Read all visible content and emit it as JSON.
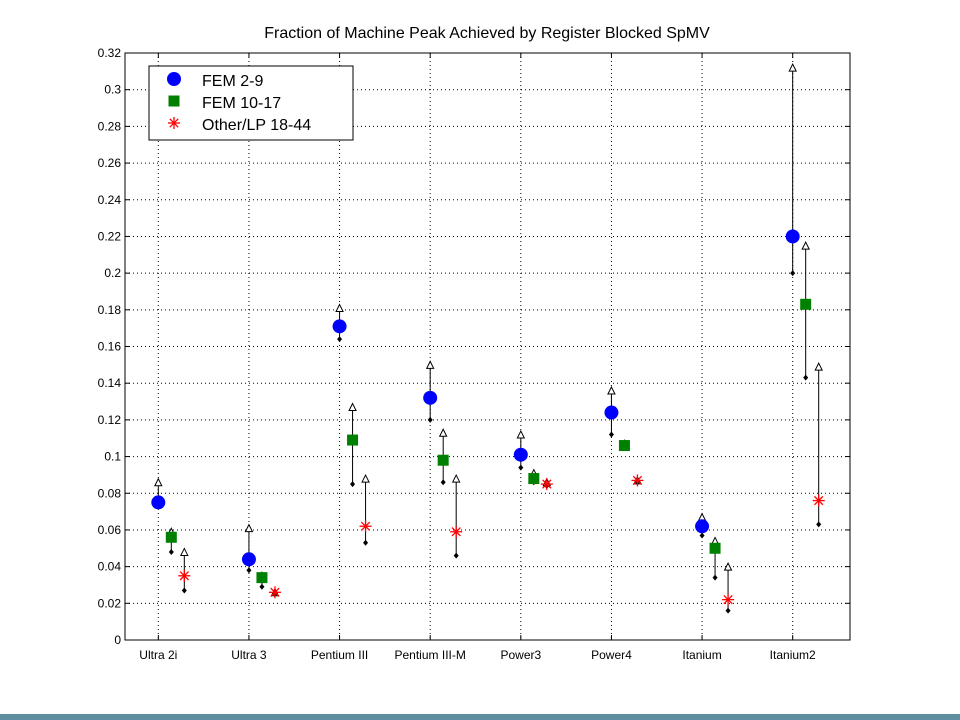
{
  "chart_data": {
    "type": "scatter",
    "title": "Fraction of Machine Peak Achieved by Register Blocked SpMV",
    "xlabel": "",
    "ylabel": "",
    "categories": [
      "Ultra 2i",
      "Ultra 3",
      "Pentium III",
      "Pentium III-M",
      "Power3",
      "Power4",
      "Itanium",
      "Itanium2"
    ],
    "ylim": [
      0,
      0.32
    ],
    "yticks": [
      0,
      0.02,
      0.04,
      0.06,
      0.08,
      0.1,
      0.12,
      0.14,
      0.16,
      0.18,
      0.2,
      0.22,
      0.24,
      0.26,
      0.28,
      0.3,
      0.32
    ],
    "ytick_labels": [
      "0",
      "0.02",
      "0.04",
      "0.06",
      "0.08",
      "0.1",
      "0.12",
      "0.14",
      "0.16",
      "0.18",
      "0.2",
      "0.22",
      "0.24",
      "0.26",
      "0.28",
      "0.3",
      "0.32"
    ],
    "grid": true,
    "legend_position": "top-left",
    "series": [
      {
        "name": "FEM 2-9",
        "marker": "circle",
        "color": "#0000ff",
        "offset": 0,
        "values": [
          0.075,
          0.044,
          0.171,
          0.132,
          0.101,
          0.124,
          0.062,
          0.22
        ],
        "range_high": [
          0.086,
          0.061,
          0.181,
          0.15,
          0.112,
          0.136,
          0.067,
          0.312
        ],
        "range_low": [
          0.073,
          0.038,
          0.164,
          0.12,
          0.094,
          0.112,
          0.057,
          0.2
        ]
      },
      {
        "name": "FEM 10-17",
        "marker": "square",
        "color": "#008000",
        "offset": 1,
        "values": [
          0.056,
          0.034,
          0.109,
          0.098,
          0.088,
          0.106,
          0.05,
          0.183
        ],
        "range_high": [
          0.059,
          0.035,
          0.127,
          0.113,
          0.091,
          0.107,
          0.054,
          0.215
        ],
        "range_low": [
          0.048,
          0.029,
          0.085,
          0.086,
          0.086,
          0.106,
          0.034,
          0.143
        ]
      },
      {
        "name": "Other/LP 18-44",
        "marker": "star",
        "color": "#ff0000",
        "offset": 2,
        "values": [
          0.035,
          0.026,
          0.062,
          0.059,
          0.085,
          0.087,
          0.022,
          0.076
        ],
        "range_high": [
          0.048,
          0.026,
          0.088,
          0.088,
          0.086,
          0.087,
          0.04,
          0.149
        ],
        "range_low": [
          0.027,
          0.025,
          0.053,
          0.046,
          0.084,
          0.086,
          0.016,
          0.063
        ]
      }
    ]
  }
}
